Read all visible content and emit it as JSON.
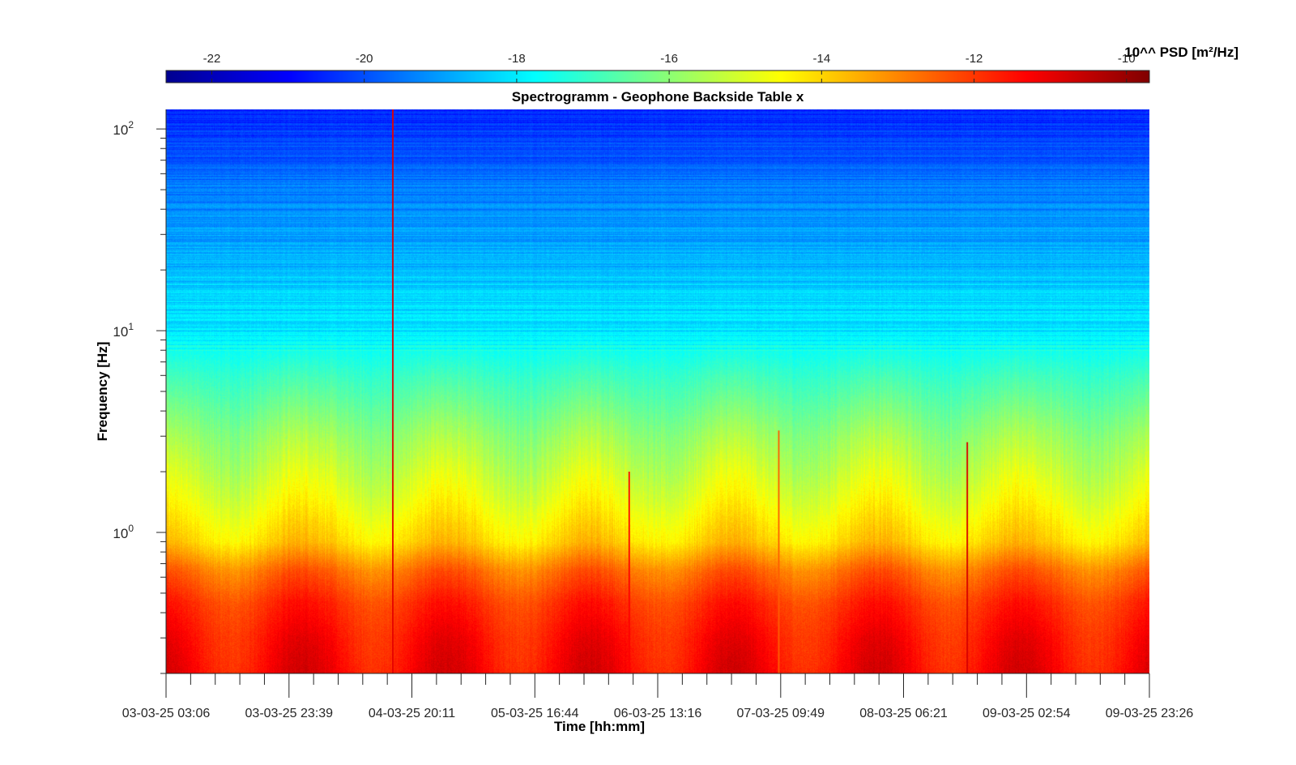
{
  "chart_data": {
    "type": "heatmap",
    "title": "Spectrogramm - Geophone Backside Table x",
    "xlabel": "Time [hh:mm]",
    "ylabel": "Frequency [Hz]",
    "x_scale": "time",
    "y_scale": "log",
    "ylim": [
      0.2,
      125
    ],
    "xlim": [
      "2025-03-03 03:06",
      "2025-03-09 23:26"
    ],
    "x_ticks": [
      {
        "t": "2025-03-03 03:06",
        "label": "03-03-25 03:06"
      },
      {
        "t": "2025-03-03 23:39",
        "label": "03-03-25 23:39"
      },
      {
        "t": "2025-03-04 20:11",
        "label": "04-03-25 20:11"
      },
      {
        "t": "2025-03-05 16:44",
        "label": "05-03-25 16:44"
      },
      {
        "t": "2025-03-06 13:16",
        "label": "06-03-25 13:16"
      },
      {
        "t": "2025-03-07 09:49",
        "label": "07-03-25 09:49"
      },
      {
        "t": "2025-03-08 06:21",
        "label": "08-03-25 06:21"
      },
      {
        "t": "2025-03-09 02:54",
        "label": "09-03-25 02:54"
      },
      {
        "t": "2025-03-09 23:26",
        "label": "09-03-25 23:26"
      }
    ],
    "y_ticks": [
      {
        "value": 1,
        "base": "10",
        "exp": "0"
      },
      {
        "value": 10,
        "base": "10",
        "exp": "1"
      },
      {
        "value": 100,
        "base": "10",
        "exp": "2"
      }
    ],
    "colorbar": {
      "label": "10^^ PSD [m²/Hz]",
      "colormap": "jet",
      "range": [
        -22.6,
        -9.7
      ],
      "ticks": [
        {
          "value": -22,
          "label": "-22"
        },
        {
          "value": -20,
          "label": "-20"
        },
        {
          "value": -18,
          "label": "-18"
        },
        {
          "value": -16,
          "label": "-16"
        },
        {
          "value": -14,
          "label": "-14"
        },
        {
          "value": -12,
          "label": "-12"
        },
        {
          "value": -10,
          "label": "-10"
        }
      ]
    },
    "frequency_profile": [
      {
        "f": 0.2,
        "log_psd": -11.3
      },
      {
        "f": 0.3,
        "log_psd": -11.5
      },
      {
        "f": 0.45,
        "log_psd": -11.9
      },
      {
        "f": 0.65,
        "log_psd": -12.7
      },
      {
        "f": 0.9,
        "log_psd": -14.0
      },
      {
        "f": 1.5,
        "log_psd": -14.8
      },
      {
        "f": 3,
        "log_psd": -15.8
      },
      {
        "f": 6,
        "log_psd": -17.0
      },
      {
        "f": 10,
        "log_psd": -18.0
      },
      {
        "f": 20,
        "log_psd": -18.6
      },
      {
        "f": 50,
        "log_psd": -19.4
      },
      {
        "f": 125,
        "log_psd": -20.6
      }
    ],
    "events": [
      {
        "t": "2025-03-04 17:00",
        "f_max": 125,
        "log_psd": -11.0
      },
      {
        "t": "2025-03-06 08:30",
        "f_max": 2.0,
        "log_psd": -11.3
      },
      {
        "t": "2025-03-07 09:30",
        "f_max": 3.2,
        "log_psd": -12.5
      },
      {
        "t": "2025-03-08 17:00",
        "f_max": 2.8,
        "log_psd": -10.8
      }
    ]
  }
}
